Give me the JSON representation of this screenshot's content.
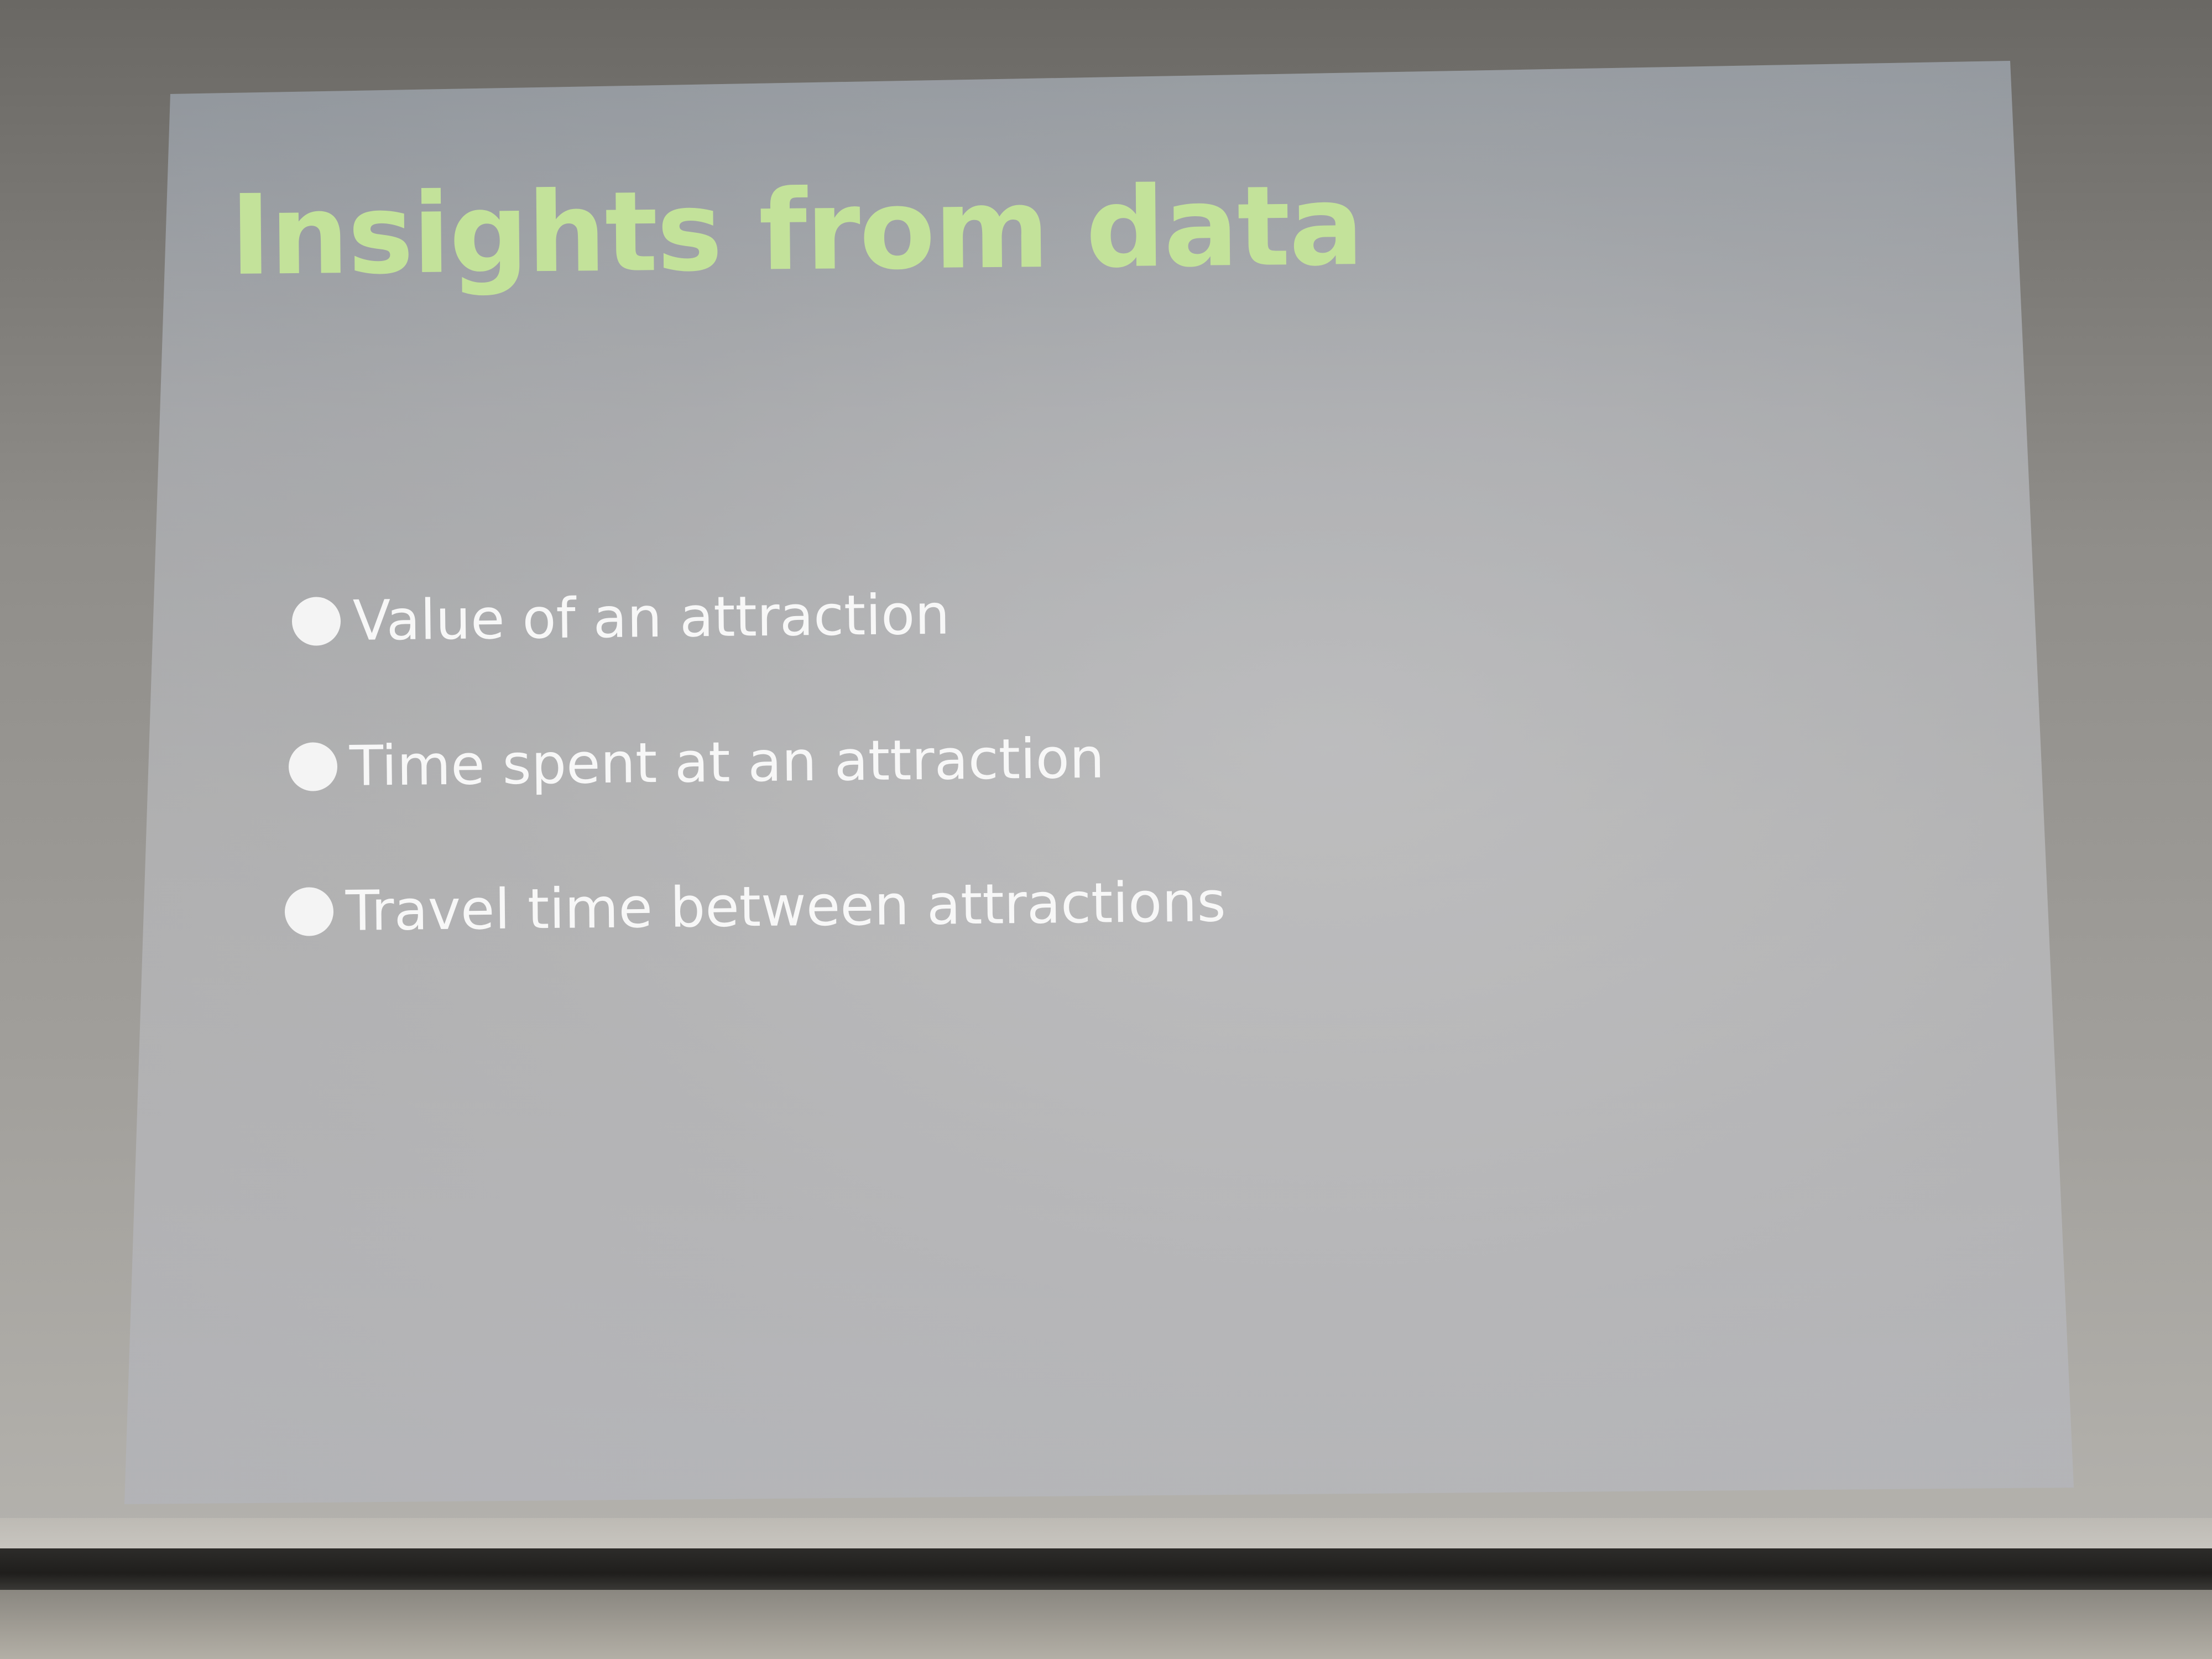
{
  "slide": {
    "title": "Insights from data",
    "bullets": [
      {
        "text": "Value of an attraction"
      },
      {
        "text": "Time spent at an attraction"
      },
      {
        "text": "Travel time between attractions"
      }
    ]
  },
  "colors": {
    "title": "#c3e29a",
    "bullet_text": "#f7f7f7",
    "slide_background": "#b1b1b1"
  }
}
